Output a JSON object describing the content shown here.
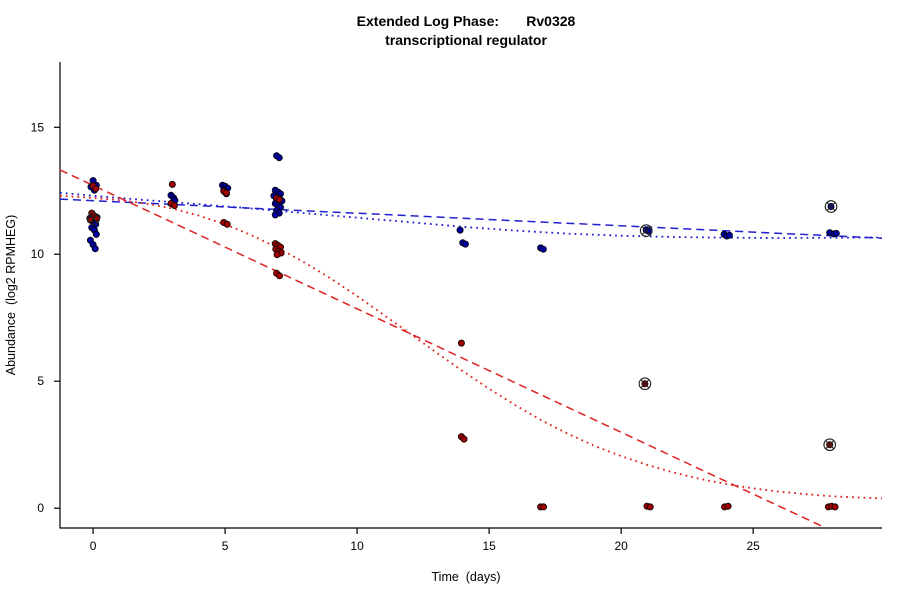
{
  "chart_data": {
    "type": "scatter",
    "title_line1": "Extended Log Phase:       Rv0328",
    "title_line2": "transcriptional regulator",
    "xlabel": "Time  (days)",
    "ylabel": "Abundance  (log2 RPMHEG)",
    "xlim": [
      -1.253,
      29.88
    ],
    "ylim": [
      -0.78,
      17.57
    ],
    "xticks": [
      0,
      5,
      10,
      15,
      20,
      25
    ],
    "yticks": [
      0,
      5,
      10,
      15
    ],
    "grid": false,
    "legend": "none",
    "axis_color": "#000000",
    "series": [
      {
        "name": "blue-replicates",
        "fill": "#0000A0",
        "stroke": "#000000",
        "points": [
          [
            0.0,
            12.9
          ],
          [
            0.12,
            12.72
          ],
          [
            -0.08,
            12.65
          ],
          [
            0.05,
            12.52
          ],
          [
            0.0,
            11.55
          ],
          [
            0.15,
            11.45
          ],
          [
            -0.12,
            11.42
          ],
          [
            0.02,
            11.3
          ],
          [
            0.1,
            11.18
          ],
          [
            -0.05,
            11.05
          ],
          [
            0.05,
            10.95
          ],
          [
            0.12,
            10.78
          ],
          [
            -0.1,
            10.55
          ],
          [
            0.0,
            10.38
          ],
          [
            0.08,
            10.22
          ],
          [
            2.95,
            12.32
          ],
          [
            3.05,
            12.22
          ],
          [
            3.1,
            12.12
          ],
          [
            4.9,
            12.72
          ],
          [
            5.0,
            12.68
          ],
          [
            5.1,
            12.6
          ],
          [
            4.95,
            12.55
          ],
          [
            5.05,
            12.38
          ],
          [
            6.95,
            13.88
          ],
          [
            7.05,
            13.8
          ],
          [
            6.9,
            12.52
          ],
          [
            7.0,
            12.45
          ],
          [
            7.1,
            12.38
          ],
          [
            6.85,
            12.3
          ],
          [
            7.05,
            12.22
          ],
          [
            6.95,
            12.15
          ],
          [
            7.15,
            12.1
          ],
          [
            6.9,
            12.0
          ],
          [
            7.0,
            11.92
          ],
          [
            7.1,
            11.85
          ],
          [
            6.95,
            11.72
          ],
          [
            7.05,
            11.62
          ],
          [
            6.9,
            11.55
          ],
          [
            13.9,
            10.95
          ],
          [
            14.0,
            10.45
          ],
          [
            14.1,
            10.4
          ],
          [
            16.95,
            10.25
          ],
          [
            17.05,
            10.2
          ],
          [
            20.95,
            10.95
          ],
          [
            21.05,
            10.9
          ],
          [
            23.9,
            10.78
          ],
          [
            24.0,
            10.72
          ],
          [
            24.1,
            10.75
          ],
          [
            27.95,
            11.88
          ],
          [
            27.9,
            10.85
          ],
          [
            28.05,
            10.8
          ],
          [
            28.15,
            10.82
          ]
        ]
      },
      {
        "name": "red-replicates",
        "fill": "#A00000",
        "stroke": "#000000",
        "points": [
          [
            0.0,
            12.7
          ],
          [
            0.1,
            12.58
          ],
          [
            -0.05,
            11.62
          ],
          [
            0.05,
            11.5
          ],
          [
            0.12,
            11.42
          ],
          [
            -0.1,
            11.35
          ],
          [
            3.0,
            12.75
          ],
          [
            2.95,
            12.0
          ],
          [
            3.08,
            11.92
          ],
          [
            4.95,
            12.48
          ],
          [
            5.05,
            12.42
          ],
          [
            4.95,
            11.25
          ],
          [
            5.08,
            11.18
          ],
          [
            6.95,
            12.22
          ],
          [
            7.05,
            12.15
          ],
          [
            6.9,
            10.42
          ],
          [
            7.0,
            10.35
          ],
          [
            7.1,
            10.28
          ],
          [
            6.92,
            10.2
          ],
          [
            7.02,
            10.12
          ],
          [
            7.12,
            10.05
          ],
          [
            6.97,
            9.98
          ],
          [
            6.95,
            9.25
          ],
          [
            7.06,
            9.15
          ],
          [
            13.95,
            6.5
          ],
          [
            13.95,
            2.82
          ],
          [
            14.05,
            2.72
          ],
          [
            16.95,
            0.05
          ],
          [
            17.06,
            0.05
          ],
          [
            20.9,
            4.9
          ],
          [
            20.98,
            0.08
          ],
          [
            21.1,
            0.05
          ],
          [
            23.92,
            0.05
          ],
          [
            24.05,
            0.08
          ],
          [
            27.9,
            2.5
          ],
          [
            27.85,
            0.05
          ],
          [
            27.97,
            0.08
          ],
          [
            28.1,
            0.05
          ]
        ]
      }
    ],
    "outlined_points": {
      "marker": "circle-cross",
      "color": "#222222",
      "points": [
        [
          0.02,
          11.4
        ],
        [
          20.95,
          10.93
        ],
        [
          20.9,
          4.9
        ],
        [
          27.95,
          11.88
        ],
        [
          27.9,
          2.5
        ]
      ]
    },
    "lines": [
      {
        "name": "blue-linear-fit",
        "color": "#2020D0",
        "style": "dashed",
        "points": [
          [
            -1.253,
            12.17
          ],
          [
            29.88,
            10.63
          ]
        ]
      },
      {
        "name": "blue-smooth-fit",
        "color": "#2020D0",
        "style": "dotted",
        "points": [
          [
            -1.253,
            12.42
          ],
          [
            0,
            12.3
          ],
          [
            2,
            12.13
          ],
          [
            4,
            11.97
          ],
          [
            6,
            11.8
          ],
          [
            8,
            11.62
          ],
          [
            10,
            11.44
          ],
          [
            12,
            11.26
          ],
          [
            14,
            11.08
          ],
          [
            16,
            10.93
          ],
          [
            18,
            10.81
          ],
          [
            20,
            10.73
          ],
          [
            22,
            10.68
          ],
          [
            24,
            10.65
          ],
          [
            26,
            10.64
          ],
          [
            28,
            10.65
          ],
          [
            29.88,
            10.66
          ]
        ]
      },
      {
        "name": "red-linear-fit",
        "color": "#E02020",
        "style": "dashed",
        "points": [
          [
            -1.253,
            13.32
          ],
          [
            27.75,
            -0.78
          ]
        ]
      },
      {
        "name": "red-smooth-fit",
        "color": "#E02020",
        "style": "dotted",
        "points": [
          [
            -1.253,
            12.3
          ],
          [
            0,
            12.22
          ],
          [
            1,
            12.13
          ],
          [
            2,
            12.0
          ],
          [
            3,
            11.8
          ],
          [
            4,
            11.52
          ],
          [
            5,
            11.18
          ],
          [
            6,
            10.75
          ],
          [
            7,
            10.25
          ],
          [
            8,
            9.68
          ],
          [
            9,
            9.05
          ],
          [
            10,
            8.35
          ],
          [
            11,
            7.62
          ],
          [
            12,
            6.88
          ],
          [
            13,
            6.13
          ],
          [
            14,
            5.4
          ],
          [
            15,
            4.7
          ],
          [
            16,
            4.05
          ],
          [
            17,
            3.45
          ],
          [
            18,
            2.92
          ],
          [
            19,
            2.45
          ],
          [
            20,
            2.05
          ],
          [
            21,
            1.7
          ],
          [
            22,
            1.4
          ],
          [
            23,
            1.15
          ],
          [
            24,
            0.95
          ],
          [
            25,
            0.78
          ],
          [
            26,
            0.65
          ],
          [
            27,
            0.55
          ],
          [
            28,
            0.47
          ],
          [
            29,
            0.42
          ],
          [
            29.88,
            0.38
          ]
        ]
      }
    ]
  }
}
